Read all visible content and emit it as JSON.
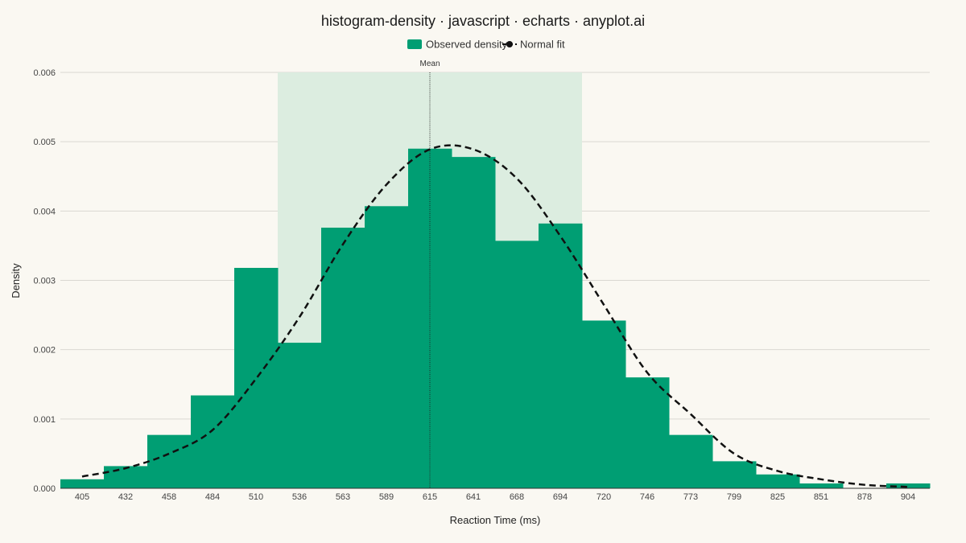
{
  "chart_data": {
    "type": "bar",
    "title": "histogram-density · javascript · echarts · anyplot.ai",
    "xlabel": "Reaction Time (ms)",
    "ylabel": "Density",
    "ylim": [
      0,
      0.006
    ],
    "yticks": [
      "0.000",
      "0.001",
      "0.002",
      "0.003",
      "0.004",
      "0.005",
      "0.006"
    ],
    "grid": true,
    "legend_position": "top-center",
    "categories": [
      "405",
      "432",
      "458",
      "484",
      "510",
      "536",
      "563",
      "589",
      "615",
      "641",
      "668",
      "694",
      "720",
      "746",
      "773",
      "799",
      "825",
      "851",
      "878",
      "904"
    ],
    "series": [
      {
        "name": "Observed density",
        "kind": "bar",
        "color": "#009E73",
        "values": [
          0.00013,
          0.00032,
          0.00077,
          0.00134,
          0.00318,
          0.0021,
          0.00376,
          0.00407,
          0.0049,
          0.00478,
          0.00357,
          0.00382,
          0.00242,
          0.0016,
          0.00077,
          0.00039,
          0.0002,
          7e-05,
          0.0,
          7e-05
        ]
      },
      {
        "name": "Normal fit",
        "kind": "line",
        "color": "#111111",
        "values": [
          0.00017,
          0.00029,
          0.0005,
          0.00084,
          0.00158,
          0.00247,
          0.00352,
          0.00438,
          0.00489,
          0.00489,
          0.00447,
          0.00364,
          0.00265,
          0.00167,
          0.00107,
          0.0005,
          0.00025,
          0.00013,
          5e-05,
          2e-05
        ]
      }
    ],
    "shaded_band": {
      "from_category": "536",
      "to_category": "694",
      "color": "#DCEDE0"
    },
    "mark_line": {
      "category": "615",
      "label": "Mean"
    }
  }
}
